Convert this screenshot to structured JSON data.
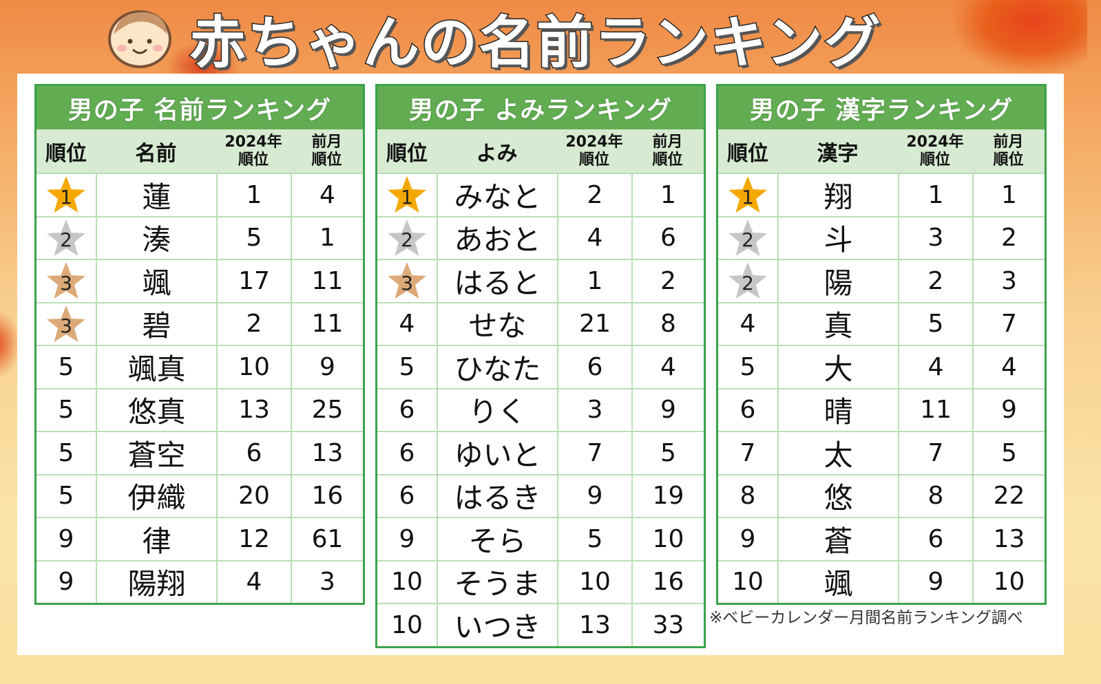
{
  "title": "赤ちゃんの名前ランキング",
  "colors": {
    "header_green": "#62ad52",
    "border_green": "#3aa24a",
    "subheader": "#d7ead2",
    "gold": "#f5a800",
    "silver": "#c6c6c6",
    "bronze": "#dcaa78"
  },
  "headers": {
    "rank": "順位",
    "y2024_line1": "2024年",
    "y2024_line2": "順位",
    "prev_line1": "前月",
    "prev_line2": "順位"
  },
  "tables": [
    {
      "title": "男の子 名前ランキング",
      "col": "名前",
      "rows": [
        {
          "rank": "1",
          "medal": "gold",
          "value": "蓮",
          "y2024": "1",
          "prev": "4"
        },
        {
          "rank": "2",
          "medal": "silver",
          "value": "湊",
          "y2024": "5",
          "prev": "1"
        },
        {
          "rank": "3",
          "medal": "bronze",
          "value": "颯",
          "y2024": "17",
          "prev": "11"
        },
        {
          "rank": "3",
          "medal": "bronze",
          "value": "碧",
          "y2024": "2",
          "prev": "11"
        },
        {
          "rank": "5",
          "medal": "",
          "value": "颯真",
          "y2024": "10",
          "prev": "9"
        },
        {
          "rank": "5",
          "medal": "",
          "value": "悠真",
          "y2024": "13",
          "prev": "25"
        },
        {
          "rank": "5",
          "medal": "",
          "value": "蒼空",
          "y2024": "6",
          "prev": "13"
        },
        {
          "rank": "5",
          "medal": "",
          "value": "伊織",
          "y2024": "20",
          "prev": "16"
        },
        {
          "rank": "9",
          "medal": "",
          "value": "律",
          "y2024": "12",
          "prev": "61"
        },
        {
          "rank": "9",
          "medal": "",
          "value": "陽翔",
          "y2024": "4",
          "prev": "3"
        }
      ]
    },
    {
      "title": "男の子 よみランキング",
      "col": "よみ",
      "rows": [
        {
          "rank": "1",
          "medal": "gold",
          "value": "みなと",
          "y2024": "2",
          "prev": "1"
        },
        {
          "rank": "2",
          "medal": "silver",
          "value": "あおと",
          "y2024": "4",
          "prev": "6"
        },
        {
          "rank": "3",
          "medal": "bronze",
          "value": "はると",
          "y2024": "1",
          "prev": "2"
        },
        {
          "rank": "4",
          "medal": "",
          "value": "せな",
          "y2024": "21",
          "prev": "8"
        },
        {
          "rank": "5",
          "medal": "",
          "value": "ひなた",
          "y2024": "6",
          "prev": "4"
        },
        {
          "rank": "6",
          "medal": "",
          "value": "りく",
          "y2024": "3",
          "prev": "9"
        },
        {
          "rank": "6",
          "medal": "",
          "value": "ゆいと",
          "y2024": "7",
          "prev": "5"
        },
        {
          "rank": "6",
          "medal": "",
          "value": "はるき",
          "y2024": "9",
          "prev": "19"
        },
        {
          "rank": "9",
          "medal": "",
          "value": "そら",
          "y2024": "5",
          "prev": "10"
        },
        {
          "rank": "10",
          "medal": "",
          "value": "そうま",
          "y2024": "10",
          "prev": "16"
        },
        {
          "rank": "10",
          "medal": "",
          "value": "いつき",
          "y2024": "13",
          "prev": "33"
        }
      ]
    },
    {
      "title": "男の子 漢字ランキング",
      "col": "漢字",
      "rows": [
        {
          "rank": "1",
          "medal": "gold",
          "value": "翔",
          "y2024": "1",
          "prev": "1"
        },
        {
          "rank": "2",
          "medal": "silver",
          "value": "斗",
          "y2024": "3",
          "prev": "2"
        },
        {
          "rank": "2",
          "medal": "silver",
          "value": "陽",
          "y2024": "2",
          "prev": "3"
        },
        {
          "rank": "4",
          "medal": "",
          "value": "真",
          "y2024": "5",
          "prev": "7"
        },
        {
          "rank": "5",
          "medal": "",
          "value": "大",
          "y2024": "4",
          "prev": "4"
        },
        {
          "rank": "6",
          "medal": "",
          "value": "晴",
          "y2024": "11",
          "prev": "9"
        },
        {
          "rank": "7",
          "medal": "",
          "value": "太",
          "y2024": "7",
          "prev": "5"
        },
        {
          "rank": "8",
          "medal": "",
          "value": "悠",
          "y2024": "8",
          "prev": "22"
        },
        {
          "rank": "9",
          "medal": "",
          "value": "蒼",
          "y2024": "6",
          "prev": "13"
        },
        {
          "rank": "10",
          "medal": "",
          "value": "颯",
          "y2024": "9",
          "prev": "10"
        }
      ]
    }
  ],
  "note": "※ベビーカレンダー月間名前ランキング調べ"
}
